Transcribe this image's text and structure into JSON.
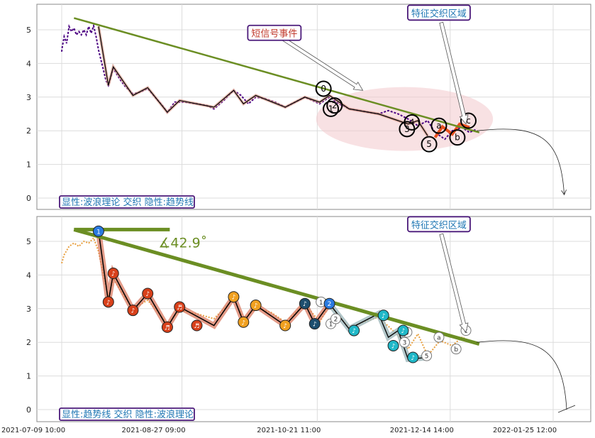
{
  "chart_data": [
    {
      "type": "line",
      "panel": "top",
      "y_ticks": [
        "0",
        "1",
        "2",
        "3",
        "4",
        "5"
      ],
      "ylim": [
        -0.3,
        5.8
      ],
      "grid": true,
      "colors": {
        "price": "#4b0082",
        "wave": "#000000",
        "trend": "#6b8e23",
        "signal": "#e8501e",
        "ellipse": "#f2c8cc"
      },
      "price_series": [
        [
          "2021-07-09 10:00",
          4.35
        ],
        [
          "2021-07-09 16:00",
          4.5
        ],
        [
          "2021-07-10 10:00",
          4.8
        ],
        [
          "2021-07-11 10:00",
          4.6
        ],
        [
          "2021-07-12 10:00",
          5.1
        ],
        [
          "2021-07-13 10:00",
          4.95
        ],
        [
          "2021-07-14 10:00",
          5.05
        ],
        [
          "2021-07-15 10:00",
          4.85
        ],
        [
          "2021-07-16 10:00",
          4.95
        ],
        [
          "2021-07-17 10:00",
          4.85
        ],
        [
          "2021-07-18 10:00",
          5.0
        ],
        [
          "2021-07-19 10:00",
          4.85
        ],
        [
          "2021-07-20 10:00",
          5.1
        ],
        [
          "2021-07-21 10:00",
          4.9
        ],
        [
          "2021-07-22 10:00",
          5.12
        ],
        [
          "2021-07-23 10:00",
          4.8
        ],
        [
          "2021-07-24 10:00",
          4.4
        ],
        [
          "2021-07-25 10:00",
          4.1
        ],
        [
          "2021-07-27 10:00",
          3.5
        ],
        [
          "2021-07-28 10:00",
          3.35
        ],
        [
          "2021-07-30 10:00",
          3.85
        ],
        [
          "2021-08-02 10:00",
          3.5
        ],
        [
          "2021-08-04 10:00",
          3.3
        ],
        [
          "2021-08-07 10:00",
          3.1
        ],
        [
          "2021-08-10 10:00",
          3.15
        ],
        [
          "2021-08-13 10:00",
          3.25
        ],
        [
          "2021-08-16 10:00",
          3.0
        ],
        [
          "2021-08-19 10:00",
          2.75
        ],
        [
          "2021-08-21 10:00",
          2.55
        ],
        [
          "2021-08-24 10:00",
          2.85
        ],
        [
          "2021-08-28 10:00",
          2.85
        ],
        [
          "2021-09-02 10:00",
          2.8
        ],
        [
          "2021-09-06 10:00",
          2.75
        ],
        [
          "2021-09-09 10:00",
          2.65
        ],
        [
          "2021-09-13 10:00",
          2.9
        ],
        [
          "2021-09-17 10:00",
          3.2
        ],
        [
          "2021-09-20 10:00",
          3.05
        ],
        [
          "2021-09-23 10:00",
          2.8
        ],
        [
          "2021-09-26 10:00",
          3.0
        ],
        [
          "2021-09-30 10:00",
          2.95
        ],
        [
          "2021-10-04 10:00",
          2.85
        ],
        [
          "2021-10-08 10:00",
          2.7
        ],
        [
          "2021-10-12 10:00",
          2.85
        ],
        [
          "2021-10-16 10:00",
          3.0
        ],
        [
          "2021-10-19 10:00",
          2.9
        ],
        [
          "2021-10-22 10:00",
          2.8
        ],
        [
          "2021-10-26 10:00",
          3.0
        ],
        [
          "2021-10-30 10:00",
          2.8
        ],
        [
          "2021-11-03 10:00",
          2.65
        ],
        [
          "2021-11-07 10:00",
          2.6
        ],
        [
          "2021-11-11 10:00",
          2.55
        ],
        [
          "2021-11-15 10:00",
          2.5
        ],
        [
          "2021-11-19 10:00",
          2.6
        ],
        [
          "2021-11-23 10:00",
          2.5
        ],
        [
          "2021-11-27 10:00",
          2.35
        ],
        [
          "2021-12-01 10:00",
          2.15
        ],
        [
          "2021-12-05 10:00",
          2.3
        ],
        [
          "2021-12-08 10:00",
          1.95
        ],
        [
          "2021-12-12 10:00",
          1.75
        ],
        [
          "2021-12-15 10:00",
          2.0
        ],
        [
          "2021-12-19 10:00",
          2.1
        ],
        [
          "2021-12-22 10:00",
          1.95
        ],
        [
          "2021-12-25 10:00",
          2.05
        ]
      ],
      "wave_points": [
        [
          "2021-07-24 10:00",
          5.1
        ],
        [
          "2021-07-28 10:00",
          3.35
        ],
        [
          "2021-07-30 10:00",
          3.9
        ],
        [
          "2021-08-07 10:00",
          3.05
        ],
        [
          "2021-08-13 10:00",
          3.28
        ],
        [
          "2021-08-21 10:00",
          2.55
        ],
        [
          "2021-08-26 10:00",
          2.9
        ],
        [
          "2021-09-09 10:00",
          2.7
        ],
        [
          "2021-09-17 10:00",
          3.2
        ],
        [
          "2021-09-21 10:00",
          2.8
        ],
        [
          "2021-09-26 10:00",
          3.05
        ],
        [
          "2021-10-08 10:00",
          2.7
        ],
        [
          "2021-10-16 10:00",
          3.0
        ],
        [
          "2021-10-22 10:00",
          2.85
        ],
        [
          "2021-10-26 10:00",
          3.05
        ],
        [
          "2021-11-03 10:00",
          2.65
        ],
        [
          "2021-11-15 10:00",
          2.5
        ],
        [
          "2021-11-27 10:00",
          2.2
        ],
        [
          "2021-12-01 10:00",
          2.3
        ],
        [
          "2021-12-05 10:00",
          1.85
        ]
      ],
      "trend_line": [
        [
          "2021-07-14 10:00",
          5.35
        ],
        [
          "2021-12-26 10:00",
          1.95
        ]
      ],
      "signal_segments": [
        [
          [
            "2021-12-08 10:00",
            1.8
          ],
          [
            "2021-12-11 10:00",
            2.12
          ],
          [
            "2021-12-15 10:00",
            1.9
          ],
          [
            "2021-12-18 10:00",
            2.2
          ],
          [
            "2021-12-22 10:00",
            2.1
          ]
        ]
      ],
      "wave_labels": [
        {
          "text": "0",
          "x": "2021-10-24 00:00",
          "y": 3.25
        },
        {
          "text": "1",
          "x": "2021-10-27 00:00",
          "y": 2.65
        },
        {
          "text": "2",
          "x": "2021-10-28 12:00",
          "y": 2.75
        },
        {
          "text": "3",
          "x": "2021-11-27 00:00",
          "y": 2.05
        },
        {
          "text": "4",
          "x": "2021-11-29 00:00",
          "y": 2.25
        },
        {
          "text": "5",
          "x": "2021-12-06 00:00",
          "y": 1.6
        },
        {
          "text": "a",
          "x": "2021-12-10 00:00",
          "y": 2.15
        },
        {
          "text": "b",
          "x": "2021-12-17 12:00",
          "y": 1.8
        },
        {
          "text": "c",
          "x": "2021-12-22 00:00",
          "y": 2.3
        }
      ],
      "ellipse": {
        "cx": "2021-11-26 00:00",
        "cy": 2.35,
        "rx_days": 36,
        "ry": 0.95
      },
      "callouts": [
        {
          "text": "短信号事件",
          "x": "2021-10-04 00:00",
          "y": 4.9,
          "tx": "2021-11-09 00:00",
          "ty": 3.2,
          "color": "#c0392b"
        },
        {
          "text": "特征交织区域",
          "x": "2021-12-10 00:00",
          "y": 5.5,
          "tx": "2021-12-21 00:00",
          "ty": 2.2,
          "color": "#1f77b4"
        }
      ],
      "projection": {
        "from": [
          "2021-12-25 10:00",
          2.0
        ],
        "to": [
          "2022-01-30 00:00",
          0.1
        ]
      },
      "legend_label": "显性:波浪理论 交织 隐性:趋势线"
    },
    {
      "type": "line",
      "panel": "bottom",
      "y_ticks": [
        "0",
        "1",
        "2",
        "3",
        "4",
        "5"
      ],
      "ylim": [
        -0.3,
        5.8
      ],
      "x_ticks": [
        "2021-07-09 10:00",
        "2021-08-27 09:00",
        "2021-10-21 11:00",
        "2021-12-14 14:00",
        "2022-01-25 12:00"
      ],
      "grid": true,
      "colors": {
        "price": "#e8a040",
        "trend": "#6b8e23",
        "wave_band": "#d97a60",
        "dot_red": "#d8401a",
        "dot_orange": "#f0a020",
        "dot_dark": "#1d4e6e",
        "dot_cyan": "#20b8c8"
      },
      "price_series": [
        [
          "2021-07-09 10:00",
          4.35
        ],
        [
          "2021-07-10 10:00",
          4.6
        ],
        [
          "2021-07-12 10:00",
          4.85
        ],
        [
          "2021-07-14 10:00",
          4.95
        ],
        [
          "2021-07-16 10:00",
          4.85
        ],
        [
          "2021-07-18 10:00",
          5.0
        ],
        [
          "2021-07-20 10:00",
          4.95
        ],
        [
          "2021-07-22 10:00",
          5.1
        ],
        [
          "2021-07-24 10:00",
          4.7
        ],
        [
          "2021-07-26 10:00",
          4.0
        ],
        [
          "2021-07-28 10:00",
          3.35
        ],
        [
          "2021-07-30 10:00",
          3.9
        ],
        [
          "2021-08-04 10:00",
          3.3
        ],
        [
          "2021-08-07 10:00",
          3.0
        ],
        [
          "2021-08-13 10:00",
          3.25
        ],
        [
          "2021-08-16 10:00",
          3.0
        ],
        [
          "2021-08-21 10:00",
          2.55
        ],
        [
          "2021-08-26 10:00",
          2.95
        ],
        [
          "2021-09-02 10:00",
          2.85
        ],
        [
          "2021-09-09 10:00",
          2.7
        ],
        [
          "2021-09-17 10:00",
          3.3
        ],
        [
          "2021-09-21 10:00",
          2.7
        ],
        [
          "2021-09-26 10:00",
          3.0
        ],
        [
          "2021-10-02 10:00",
          2.9
        ],
        [
          "2021-10-08 10:00",
          2.6
        ],
        [
          "2021-10-16 10:00",
          3.15
        ],
        [
          "2021-10-22 10:00",
          2.6
        ],
        [
          "2021-10-26 10:00",
          3.1
        ],
        [
          "2021-11-03 10:00",
          2.45
        ],
        [
          "2021-11-15 10:00",
          2.75
        ],
        [
          "2021-11-23 10:00",
          2.2
        ],
        [
          "2021-11-27 10:00",
          1.8
        ],
        [
          "2021-12-01 10:00",
          2.25
        ],
        [
          "2021-12-05 10:00",
          1.6
        ],
        [
          "2021-12-10 10:00",
          2.05
        ],
        [
          "2021-12-15 10:00",
          1.9
        ],
        [
          "2021-12-19 10:00",
          2.15
        ],
        [
          "2021-12-22 10:00",
          2.05
        ]
      ],
      "wave_points": [
        [
          "2021-07-24 10:00",
          5.3
        ],
        [
          "2021-07-28 10:00",
          3.2
        ],
        [
          "2021-07-30 10:00",
          4.05
        ],
        [
          "2021-08-07 10:00",
          2.95
        ],
        [
          "2021-08-13 10:00",
          3.45
        ],
        [
          "2021-08-21 10:00",
          2.45
        ],
        [
          "2021-08-26 10:00",
          3.05
        ],
        [
          "2021-09-09 10:00",
          2.5
        ],
        [
          "2021-09-17 10:00",
          3.35
        ],
        [
          "2021-09-21 10:00",
          2.6
        ],
        [
          "2021-09-26 10:00",
          3.1
        ],
        [
          "2021-10-08 10:00",
          2.5
        ],
        [
          "2021-10-16 10:00",
          3.15
        ],
        [
          "2021-10-20 10:00",
          2.55
        ],
        [
          "2021-10-26 10:00",
          3.15
        ]
      ],
      "wave_points_2": [
        [
          "2021-10-26 10:00",
          3.15
        ],
        [
          "2021-11-03 10:00",
          2.4
        ],
        [
          "2021-11-15 10:00",
          2.85
        ],
        [
          "2021-11-19 10:00",
          2.15
        ],
        [
          "2021-11-23 10:00",
          2.35
        ],
        [
          "2021-11-27 10:00",
          1.5
        ],
        [
          "2021-12-05 10:00",
          1.55
        ]
      ],
      "dots": [
        {
          "x": "2021-07-24 10:00",
          "y": 5.3,
          "c": "#2a7ae0",
          "t": "1"
        },
        {
          "x": "2021-07-28 10:00",
          "y": 3.2,
          "c": "#d8401a",
          "t": "♪"
        },
        {
          "x": "2021-07-30 10:00",
          "y": 4.05,
          "c": "#d8401a",
          "t": "♪"
        },
        {
          "x": "2021-08-07 10:00",
          "y": 2.95,
          "c": "#d8401a",
          "t": "♪"
        },
        {
          "x": "2021-08-13 10:00",
          "y": 3.45,
          "c": "#d8401a",
          "t": "♪"
        },
        {
          "x": "2021-08-21 10:00",
          "y": 2.45,
          "c": "#d8401a",
          "t": "♬"
        },
        {
          "x": "2021-08-26 10:00",
          "y": 3.05,
          "c": "#d8401a",
          "t": "♬"
        },
        {
          "x": "2021-09-02 10:00",
          "y": 2.5,
          "c": "#d8401a",
          "t": "♬"
        },
        {
          "x": "2021-09-17 10:00",
          "y": 3.35,
          "c": "#f0a020",
          "t": "♪"
        },
        {
          "x": "2021-09-21 10:00",
          "y": 2.6,
          "c": "#f0a020",
          "t": "♪"
        },
        {
          "x": "2021-09-26 10:00",
          "y": 3.1,
          "c": "#f0a020",
          "t": "♪"
        },
        {
          "x": "2021-10-08 10:00",
          "y": 2.5,
          "c": "#f0a020",
          "t": "♪"
        },
        {
          "x": "2021-10-16 10:00",
          "y": 3.15,
          "c": "#1d4e6e",
          "t": "♪"
        },
        {
          "x": "2021-10-20 10:00",
          "y": 2.55,
          "c": "#1d4e6e",
          "t": "♪"
        },
        {
          "x": "2021-10-26 10:00",
          "y": 3.15,
          "c": "#2a7ae0",
          "t": "2"
        },
        {
          "x": "2021-11-05 10:00",
          "y": 2.35,
          "c": "#20b8c8",
          "t": "♪"
        },
        {
          "x": "2021-11-17 10:00",
          "y": 2.8,
          "c": "#20b8c8",
          "t": "♪"
        },
        {
          "x": "2021-11-21 10:00",
          "y": 1.9,
          "c": "#20b8c8",
          "t": "♪"
        },
        {
          "x": "2021-11-25 10:00",
          "y": 2.35,
          "c": "#20b8c8",
          "t": "♪"
        },
        {
          "x": "2021-11-29 10:00",
          "y": 1.55,
          "c": "#20b8c8",
          "t": "♪"
        }
      ],
      "hollow_labels": [
        {
          "text": "1",
          "x": "2021-10-23 00:00",
          "y": 3.2
        },
        {
          "text": "1",
          "x": "2021-10-27 00:00",
          "y": 2.55
        },
        {
          "text": "2",
          "x": "2021-10-29 00:00",
          "y": 2.7
        },
        {
          "text": "3",
          "x": "2021-11-26 00:00",
          "y": 2.0
        },
        {
          "text": "4",
          "x": "2021-11-27 00:00",
          "y": 2.3
        },
        {
          "text": "5",
          "x": "2021-12-05 00:00",
          "y": 1.6
        },
        {
          "text": "a",
          "x": "2021-12-10 00:00",
          "y": 2.15
        },
        {
          "text": "b",
          "x": "2021-12-17 00:00",
          "y": 1.8
        },
        {
          "text": "c",
          "x": "2021-12-21 00:00",
          "y": 2.35
        }
      ],
      "trend_line": [
        [
          "2021-07-14 10:00",
          5.35
        ],
        [
          "2021-12-26 10:00",
          1.95
        ]
      ],
      "flat_line": [
        [
          "2021-07-14 10:00",
          5.35
        ],
        [
          "2021-08-22 10:00",
          5.35
        ]
      ],
      "angle_text": "∡42.9˚",
      "callouts": [
        {
          "text": "特征交织区域",
          "x": "2021-12-10 00:00",
          "y": 5.5,
          "tx": "2021-12-21 00:00",
          "ty": 2.3,
          "color": "#1f77b4"
        }
      ],
      "projection": {
        "from": [
          "2021-12-25 10:00",
          2.0
        ],
        "to": [
          "2022-01-31 00:00",
          0.0
        ]
      },
      "legend_label": "显性:趋势线 交织 隐性:波浪理论"
    }
  ]
}
